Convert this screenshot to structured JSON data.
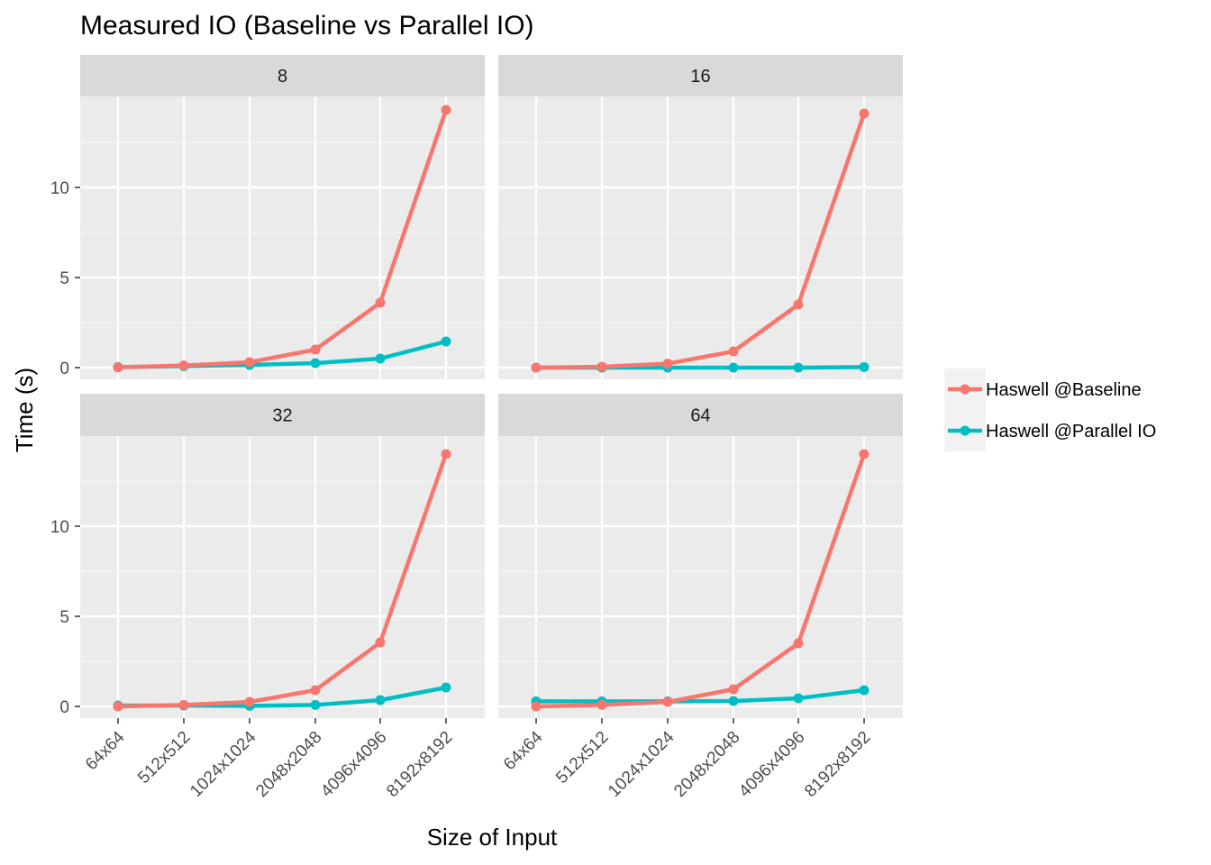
{
  "chart_data": {
    "type": "line",
    "title": "Measured IO (Baseline vs Parallel IO)",
    "xlabel": "Size of Input",
    "ylabel": "Time (s)",
    "categories": [
      "64x64",
      "512x512",
      "1024x1024",
      "2048x2048",
      "4096x4096",
      "8192x8192"
    ],
    "y_ticks": [
      "0",
      "5",
      "10"
    ],
    "ylim": [
      -0.7,
      15.0
    ],
    "grid": true,
    "legend_position": "right",
    "colors": {
      "baseline": "#F8766D",
      "parallel": "#00BFC4"
    },
    "legend": [
      "Haswell @Baseline",
      "Haswell @Parallel IO"
    ],
    "panels": [
      {
        "label": "8",
        "series": [
          {
            "name": "Haswell @Baseline",
            "values": [
              0.02,
              0.12,
              0.3,
              1.0,
              3.6,
              14.3
            ]
          },
          {
            "name": "Haswell @Parallel IO",
            "values": [
              0.03,
              0.08,
              0.15,
              0.25,
              0.5,
              1.45
            ]
          }
        ]
      },
      {
        "label": "16",
        "series": [
          {
            "name": "Haswell @Baseline",
            "values": [
              0.0,
              0.05,
              0.22,
              0.9,
              3.5,
              14.1
            ]
          },
          {
            "name": "Haswell @Parallel IO",
            "values": [
              0.0,
              0.0,
              0.0,
              0.0,
              0.0,
              0.03
            ]
          }
        ]
      },
      {
        "label": "32",
        "series": [
          {
            "name": "Haswell @Baseline",
            "values": [
              0.0,
              0.08,
              0.25,
              0.9,
              3.55,
              14.0
            ]
          },
          {
            "name": "Haswell @Parallel IO",
            "values": [
              0.05,
              0.05,
              0.03,
              0.08,
              0.35,
              1.05
            ]
          }
        ]
      },
      {
        "label": "64",
        "series": [
          {
            "name": "Haswell @Baseline",
            "values": [
              0.0,
              0.08,
              0.25,
              0.95,
              3.5,
              14.0
            ]
          },
          {
            "name": "Haswell @Parallel IO",
            "values": [
              0.28,
              0.28,
              0.28,
              0.3,
              0.45,
              0.9
            ]
          }
        ]
      }
    ]
  }
}
